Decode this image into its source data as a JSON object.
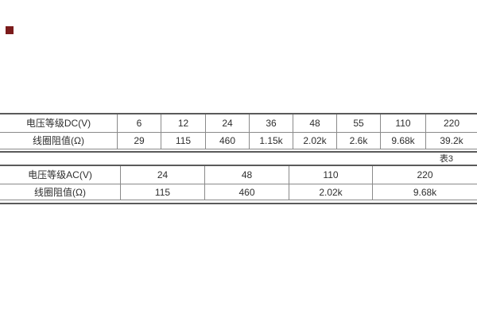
{
  "document": {
    "background": "#ffffff",
    "caption": "表3",
    "marker_color": "#7b1b1b",
    "line_color": "#8a8a8a",
    "heavy_rule_color": "#5a5a5a",
    "text_color": "#2e2e2e"
  },
  "dc_table": {
    "rows": [
      {
        "label": "电压等级DC(V)",
        "values": [
          "6",
          "12",
          "24",
          "36",
          "48",
          "55",
          "110",
          "220"
        ]
      },
      {
        "label": "线圈阻值(Ω)",
        "values": [
          "29",
          "115",
          "460",
          "1.15k",
          "2.02k",
          "2.6k",
          "9.68k",
          "39.2k"
        ]
      }
    ]
  },
  "ac_table": {
    "rows": [
      {
        "label": "电压等级AC(V)",
        "values": [
          "24",
          "48",
          "110",
          "220"
        ]
      },
      {
        "label": "线圈阻值(Ω)",
        "values": [
          "115",
          "460",
          "2.02k",
          "9.68k"
        ]
      }
    ]
  }
}
